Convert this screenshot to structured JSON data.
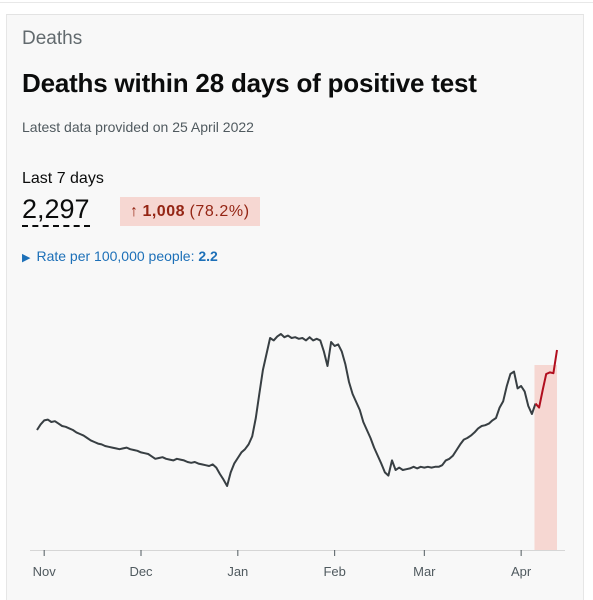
{
  "card": {
    "section": "Deaths",
    "title": "Deaths within 28 days of positive test",
    "latest": "Latest data provided on 25 April 2022",
    "period_label": "Last 7 days",
    "value": "2,297",
    "change_arrow": "↑",
    "change_value": "1,008",
    "change_percent": "(78.2%)",
    "rate_label": "Rate per 100,000 people:",
    "rate_value": "2.2"
  },
  "colors": {
    "line": "#383f43",
    "highlight_line": "#b10e1e",
    "highlight_fill": "#f6d7d2",
    "change_text": "#942514",
    "link": "#1d70b8"
  },
  "chart_data": {
    "type": "line",
    "title": "",
    "xlabel": "",
    "ylabel": "",
    "y_axis": "not shown",
    "grid": false,
    "tick_labels": [
      "Nov",
      "Dec",
      "Jan",
      "Feb",
      "Mar",
      "Apr"
    ],
    "highlight": "last 7 days",
    "series": [
      {
        "values": [
          150,
          157,
          162,
          163,
          160,
          161,
          158,
          155,
          154,
          152,
          150,
          147,
          145,
          143,
          140,
          137,
          135,
          133,
          132,
          130,
          129,
          128,
          127,
          126,
          127,
          128,
          126,
          125,
          124,
          122,
          121,
          120,
          117,
          114,
          115,
          116,
          114,
          113,
          112,
          114,
          113,
          112,
          110,
          109,
          110,
          108,
          107,
          106,
          105,
          107,
          103,
          95,
          88,
          80,
          97,
          108,
          115,
          122,
          126,
          132,
          142,
          165,
          195,
          225,
          245,
          265,
          262,
          267,
          270,
          266,
          268,
          265,
          266,
          264,
          265,
          262,
          266,
          262,
          264,
          262,
          248,
          230,
          260,
          255,
          257,
          248,
          232,
          210,
          195,
          185,
          175,
          160,
          150,
          140,
          128,
          118,
          108,
          97,
          93,
          112,
          100,
          103,
          100,
          101,
          102,
          104,
          102,
          104,
          103,
          104,
          103,
          104,
          104,
          106,
          112,
          114,
          118,
          125,
          132,
          138,
          140,
          143,
          147,
          152,
          155,
          156,
          158,
          162,
          165,
          178,
          186,
          205,
          220,
          223,
          202,
          205,
          198,
          180,
          170,
          183,
          178,
          200,
          220,
          222,
          221,
          250
        ]
      }
    ]
  }
}
